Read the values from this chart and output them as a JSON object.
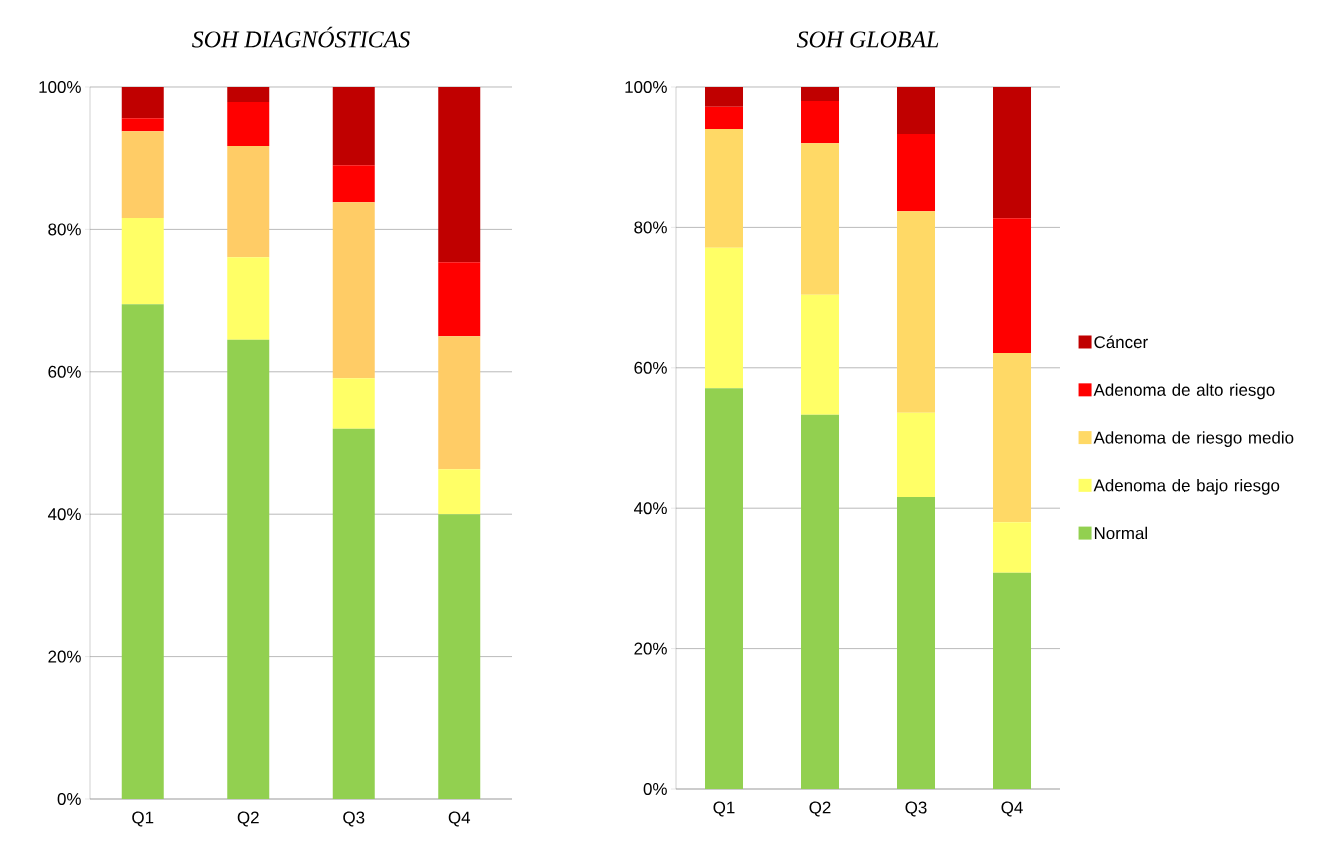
{
  "chart_data": [
    {
      "type": "bar",
      "title": "SOH DIAGNÓSTICAS",
      "stacked": true,
      "grid": "y",
      "legend": false,
      "categories": [
        "Q1",
        "Q2",
        "Q3",
        "Q4"
      ],
      "ylim": [
        0,
        100
      ],
      "yticks": [
        {
          "value": 0,
          "label": "0%"
        },
        {
          "value": 20,
          "label": "20%"
        },
        {
          "value": 40,
          "label": "40%"
        },
        {
          "value": 60,
          "label": "60%"
        },
        {
          "value": 80,
          "label": "80%"
        },
        {
          "value": 100,
          "label": "100%"
        }
      ],
      "series": [
        {
          "color": "#92d050",
          "values": [
            69.5,
            64.5,
            52.0,
            40.0
          ]
        },
        {
          "color": "#ffff66",
          "values": [
            12.1,
            11.6,
            7.1,
            6.3
          ]
        },
        {
          "color": "#ffcc66",
          "values": [
            12.2,
            15.6,
            24.7,
            18.7
          ]
        },
        {
          "color": "#ff0000",
          "values": [
            1.8,
            6.2,
            5.2,
            10.4
          ]
        },
        {
          "color": "#c00000",
          "values": [
            4.4,
            2.1,
            11.0,
            24.6
          ]
        }
      ]
    },
    {
      "type": "bar",
      "title": "SOH GLOBAL",
      "stacked": true,
      "grid": "y",
      "legend": "right",
      "categories": [
        "Q1",
        "Q2",
        "Q3",
        "Q4"
      ],
      "ylim": [
        0,
        100
      ],
      "yticks": [
        {
          "value": 0,
          "label": "0%"
        },
        {
          "value": 20,
          "label": "20%"
        },
        {
          "value": 40,
          "label": "40%"
        },
        {
          "value": 60,
          "label": "60%"
        },
        {
          "value": 80,
          "label": "80%"
        },
        {
          "value": 100,
          "label": "100%"
        }
      ],
      "series": [
        {
          "name": "Normal",
          "color": "#92d050",
          "values": [
            57.1,
            53.3,
            41.6,
            30.8
          ]
        },
        {
          "name": "Adenoma de bajo riesgo",
          "color": "#ffff66",
          "values": [
            20.0,
            17.1,
            12.0,
            7.2
          ]
        },
        {
          "name": "Adenoma de riesgo medio",
          "color": "#ffd966",
          "values": [
            16.9,
            21.6,
            28.7,
            24.1
          ]
        },
        {
          "name": "Adenoma de alto riesgo",
          "color": "#ff0000",
          "values": [
            3.2,
            6.0,
            11.0,
            19.2
          ]
        },
        {
          "name": "Cáncer",
          "color": "#c00000",
          "values": [
            2.8,
            2.0,
            6.7,
            18.7
          ]
        }
      ]
    }
  ]
}
